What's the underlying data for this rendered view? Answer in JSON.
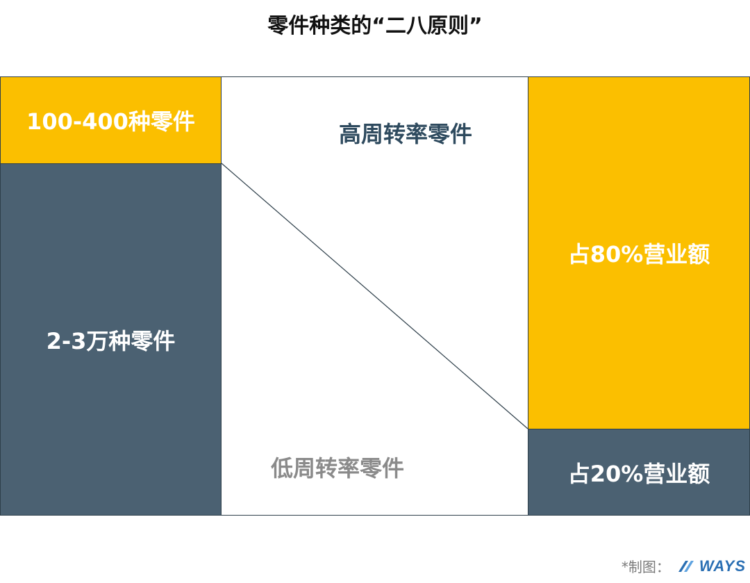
{
  "title": "零件种类的“二八原则”",
  "left": {
    "top_label": "100-400种零件",
    "bottom_label": "2-3万种零件"
  },
  "middle": {
    "high_label": "高周转率零件",
    "low_label": "低周转率零件"
  },
  "right": {
    "top_label": "占80%营业额",
    "bottom_label": "占20%营业额"
  },
  "footer": {
    "credit": "*制图：",
    "logo_text": "WAYS"
  },
  "colors": {
    "yellow": "#fbbf00",
    "slate": "#4b6172",
    "border": "#2e3f4a"
  }
}
